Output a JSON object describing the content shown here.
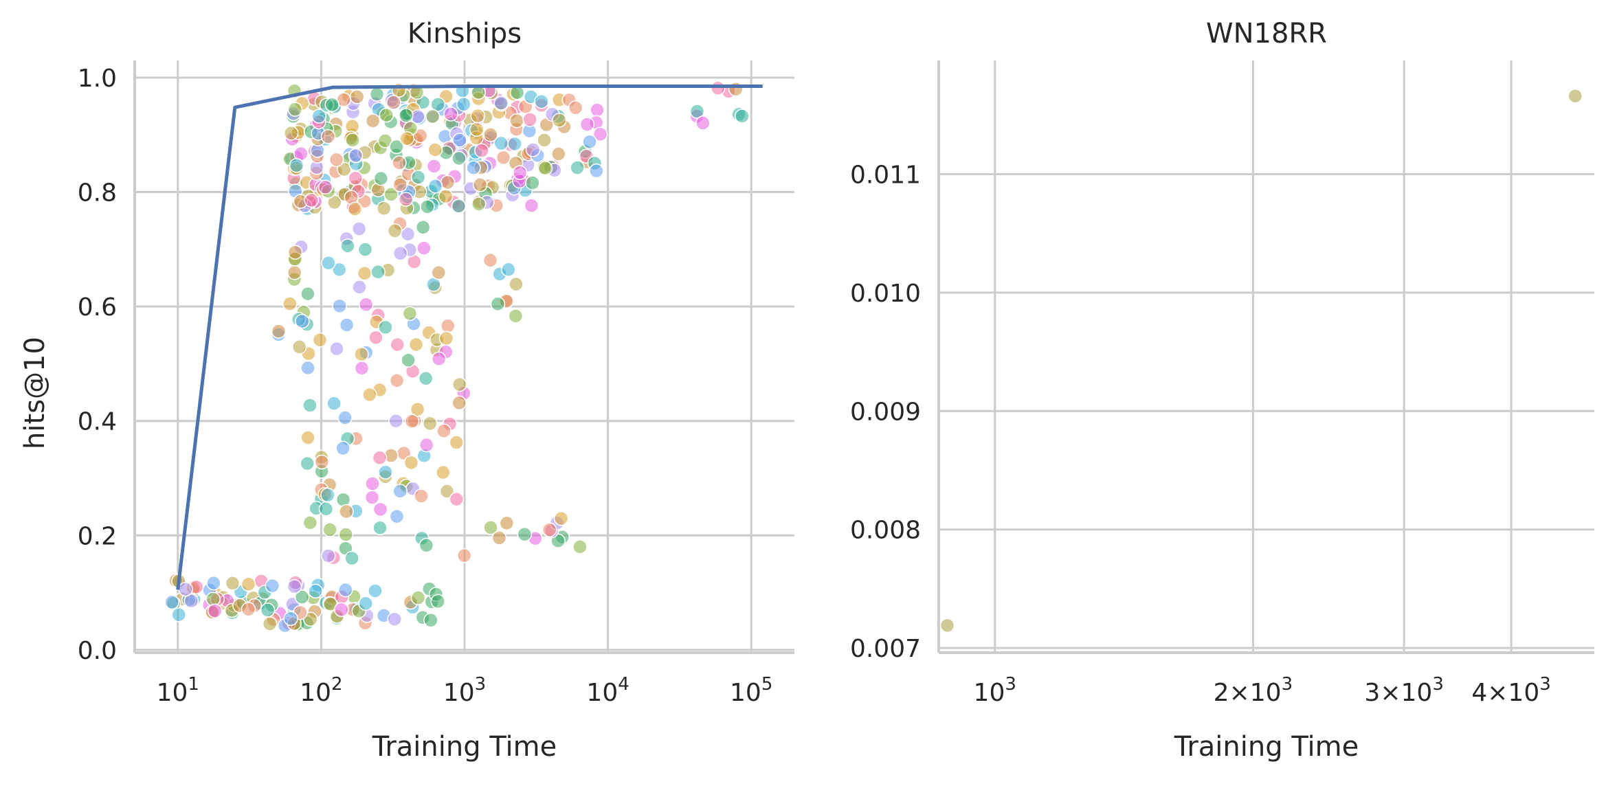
{
  "chart_data": [
    {
      "type": "scatter",
      "title": "Kinships",
      "xlabel": "Training Time",
      "ylabel": "hits@10",
      "xscale": "log",
      "xlim": [
        5,
        200000
      ],
      "ylim": [
        -0.005,
        1.03
      ],
      "x_ticks": [
        {
          "value": 10,
          "base": "10",
          "exp": "1"
        },
        {
          "value": 100,
          "base": "10",
          "exp": "2"
        },
        {
          "value": 1000,
          "base": "10",
          "exp": "3"
        },
        {
          "value": 10000,
          "base": "10",
          "exp": "4"
        },
        {
          "value": 100000,
          "base": "10",
          "exp": "5"
        }
      ],
      "y_ticks": [
        {
          "value": 0.0,
          "label": "0.0"
        },
        {
          "value": 0.2,
          "label": "0.2"
        },
        {
          "value": 0.4,
          "label": "0.4"
        },
        {
          "value": 0.6,
          "label": "0.6"
        },
        {
          "value": 0.8,
          "label": "0.8"
        },
        {
          "value": 1.0,
          "label": "1.0"
        }
      ],
      "grid": true,
      "frontier": {
        "color": "#4c72b0",
        "x": [
          10,
          25,
          120,
          1000,
          120000
        ],
        "y": [
          0.105,
          0.948,
          0.983,
          0.985,
          0.985
        ]
      },
      "palette": [
        "#e8875f",
        "#d9a12e",
        "#b3a03a",
        "#7fae3b",
        "#3aaa62",
        "#2eaf9a",
        "#3bb0d6",
        "#5c9ff0",
        "#a78ef0",
        "#e35fe0",
        "#f06aa0",
        "#c98a3a"
      ],
      "point_clusters": [
        {
          "x_range": [
            9,
            40
          ],
          "y_range": [
            0.06,
            0.125
          ],
          "count": 40
        },
        {
          "x_range": [
            40,
            120
          ],
          "y_range": [
            0.04,
            0.12
          ],
          "count": 30
        },
        {
          "x_range": [
            110,
            700
          ],
          "y_range": [
            0.045,
            0.11
          ],
          "count": 25
        },
        {
          "x_range": [
            80,
            1000
          ],
          "y_range": [
            0.16,
            0.5
          ],
          "count": 70
        },
        {
          "x_range": [
            1100,
            7000
          ],
          "y_range": [
            0.18,
            0.23
          ],
          "count": 12
        },
        {
          "x_range": [
            50,
            800
          ],
          "y_range": [
            0.5,
            0.75
          ],
          "count": 60
        },
        {
          "x_range": [
            1500,
            2600
          ],
          "y_range": [
            0.57,
            0.71
          ],
          "count": 8
        },
        {
          "x_range": [
            60,
            3000
          ],
          "y_range": [
            0.77,
            0.98
          ],
          "count": 260
        },
        {
          "x_range": [
            3000,
            9000
          ],
          "y_range": [
            0.83,
            0.97
          ],
          "count": 30
        },
        {
          "x_range": [
            40000,
            120000
          ],
          "y_range": [
            0.92,
            0.985
          ],
          "count": 8
        }
      ]
    },
    {
      "type": "scatter",
      "title": "WN18RR",
      "xlabel": "Training Time",
      "ylabel": "",
      "xscale": "log",
      "xlim": [
        860,
        5000
      ],
      "ylim": [
        0.00696,
        0.01196
      ],
      "x_ticks": [
        {
          "value": 1000,
          "base": "10",
          "exp": "3",
          "coef": ""
        },
        {
          "value": 2000,
          "base": "10",
          "exp": "3",
          "coef": "2×"
        },
        {
          "value": 3000,
          "base": "10",
          "exp": "3",
          "coef": "3×"
        },
        {
          "value": 4000,
          "base": "10",
          "exp": "3",
          "coef": "4×"
        }
      ],
      "y_ticks": [
        {
          "value": 0.007,
          "label": "0.007"
        },
        {
          "value": 0.008,
          "label": "0.008"
        },
        {
          "value": 0.009,
          "label": "0.009"
        },
        {
          "value": 0.01,
          "label": "0.010"
        },
        {
          "value": 0.011,
          "label": "0.011"
        }
      ],
      "grid": true,
      "points": [
        {
          "x": 880,
          "y": 0.00719,
          "color": "#bdb771"
        },
        {
          "x": 4750,
          "y": 0.01166,
          "color": "#bdb771"
        }
      ]
    }
  ]
}
